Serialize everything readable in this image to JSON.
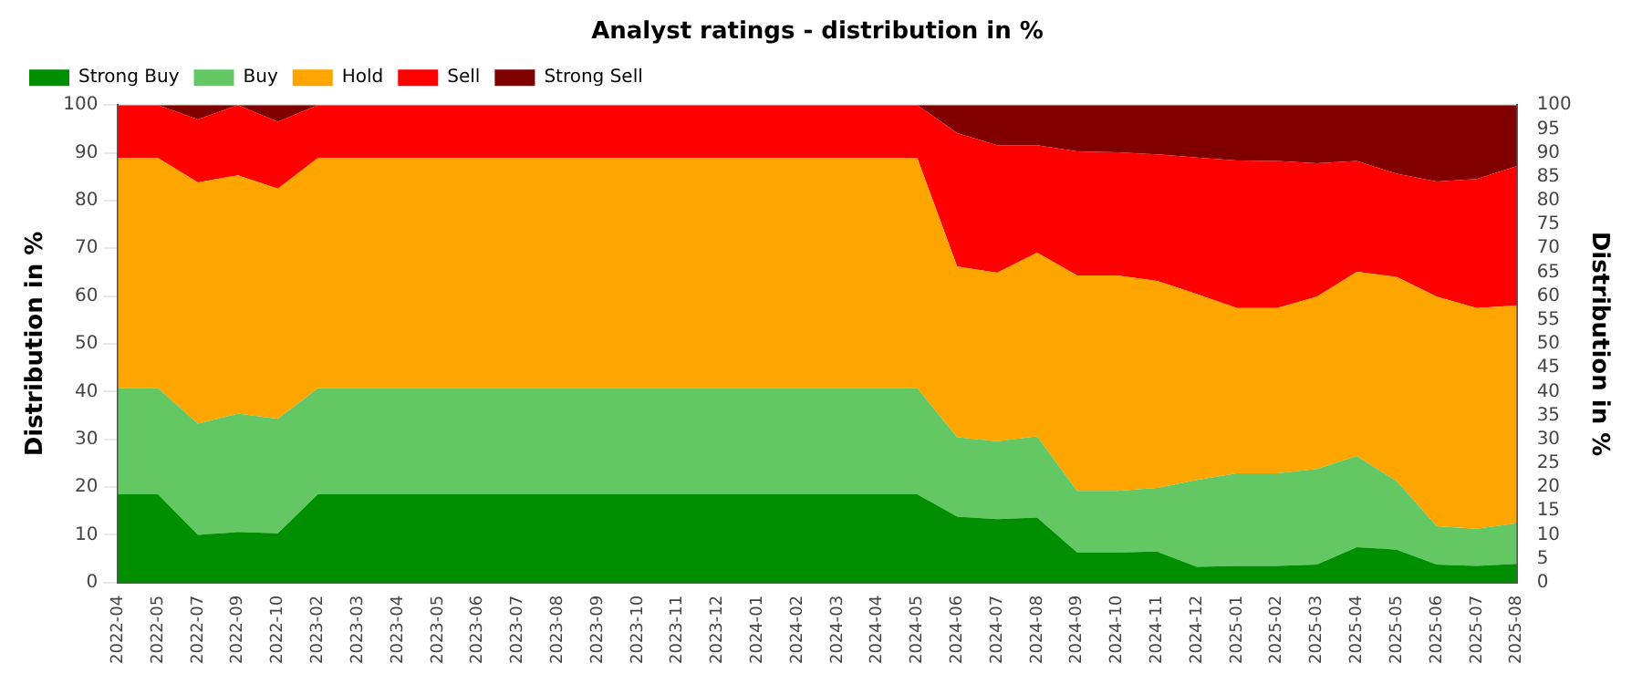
{
  "chart_data": {
    "type": "area",
    "title": "Analyst ratings - distribution in %",
    "ylabel": "Distribution in %",
    "y2label": "Distribution in %",
    "categories": [
      "2022-04",
      "2022-05",
      "2022-07",
      "2022-09",
      "2022-10",
      "2023-02",
      "2023-03",
      "2023-04",
      "2023-05",
      "2023-06",
      "2023-07",
      "2023-08",
      "2023-09",
      "2023-10",
      "2023-11",
      "2023-12",
      "2024-01",
      "2024-02",
      "2024-03",
      "2024-04",
      "2024-05",
      "2024-06",
      "2024-07",
      "2024-08",
      "2024-09",
      "2024-10",
      "2024-11",
      "2024-12",
      "2025-01",
      "2025-02",
      "2025-03",
      "2025-04",
      "2025-05",
      "2025-06",
      "2025-07",
      "2025-08"
    ],
    "stacked": true,
    "series": [
      {
        "name": "Strong Buy",
        "color": "#008f00",
        "values": [
          18.5,
          18.5,
          10,
          10.6,
          10.3,
          18.5,
          18.5,
          18.5,
          18.5,
          18.5,
          18.5,
          18.5,
          18.5,
          18.5,
          18.5,
          18.5,
          18.5,
          18.5,
          18.5,
          18.5,
          18.5,
          13.8,
          13.3,
          13.6,
          6.3,
          6.3,
          6.5,
          3.3,
          3.5,
          3.5,
          3.8,
          7.4,
          6.9,
          3.8,
          3.5,
          3.9
        ]
      },
      {
        "name": "Buy",
        "color": "#63c864",
        "values": [
          22.2,
          22.2,
          23.3,
          24.8,
          24,
          22.2,
          22.2,
          22.2,
          22.2,
          22.2,
          22.2,
          22.2,
          22.2,
          22.2,
          22.2,
          22.2,
          22.2,
          22.2,
          22.2,
          22.2,
          22.2,
          16.6,
          16.3,
          17,
          12.9,
          12.9,
          13.3,
          18.2,
          19.4,
          19.4,
          20,
          19.1,
          14.3,
          8,
          7.8,
          8.5
        ]
      },
      {
        "name": "Hold",
        "color": "#ffa500",
        "values": [
          48.2,
          48.2,
          50.5,
          49.9,
          48.2,
          48.2,
          48.2,
          48.2,
          48.2,
          48.2,
          48.2,
          48.2,
          48.2,
          48.2,
          48.2,
          48.2,
          48.2,
          48.2,
          48.2,
          48.2,
          48.2,
          35.8,
          35.3,
          38.5,
          45.1,
          45.1,
          43.4,
          38.9,
          34.6,
          34.6,
          36.1,
          38.6,
          42.8,
          48.1,
          46.2,
          45.6
        ]
      },
      {
        "name": "Sell",
        "color": "#ff0000",
        "values": [
          11.1,
          11.1,
          13.2,
          14.7,
          14,
          11.1,
          11.1,
          11.1,
          11.1,
          11.1,
          11.1,
          11.1,
          11.1,
          11.1,
          11.1,
          11.1,
          11.1,
          11.1,
          11.1,
          11.1,
          11.1,
          27.9,
          26.7,
          22.5,
          26,
          25.8,
          26.5,
          28.6,
          30.9,
          30.8,
          27.9,
          23.2,
          21.6,
          24.1,
          27,
          29.2
        ]
      },
      {
        "name": "Strong Sell",
        "color": "#800000",
        "values": [
          0,
          0,
          3,
          0,
          3.5,
          0,
          0,
          0,
          0,
          0,
          0,
          0,
          0,
          0,
          0,
          0,
          0,
          0,
          0,
          0,
          0,
          5.9,
          8.4,
          8.4,
          9.7,
          9.9,
          10.3,
          11,
          11.6,
          11.7,
          12.2,
          11.7,
          14.4,
          16,
          15.5,
          12.8
        ]
      }
    ],
    "ylim": [
      0,
      100
    ],
    "yticks": [
      0,
      10,
      20,
      30,
      40,
      50,
      60,
      70,
      80,
      90,
      100
    ],
    "y2lim": [
      0,
      100
    ],
    "y2ticks": [
      0,
      5,
      10,
      15,
      20,
      25,
      30,
      35,
      40,
      45,
      50,
      55,
      60,
      65,
      70,
      75,
      80,
      85,
      90,
      95,
      100
    ],
    "grid": "y",
    "legend": "top left",
    "marker": "none"
  }
}
